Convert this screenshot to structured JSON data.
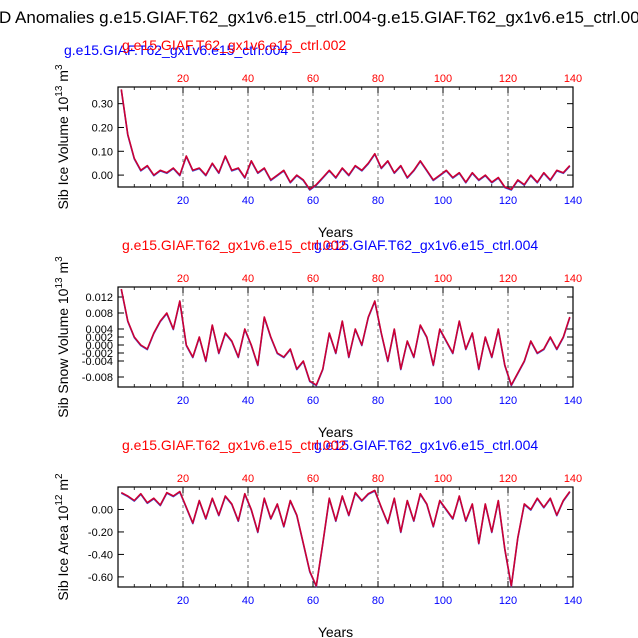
{
  "figure": {
    "title": "D Anomalies g.e15.GIAF.T62_gx1v6.e15_ctrl.004-g.e15.GIAF.T62_gx1v6.e15_ctrl.002"
  },
  "colors": {
    "blue": "#0000ff",
    "red": "#ff0000",
    "line_red": "#cc0033",
    "line_blue": "#3355dd",
    "axis": "#000000",
    "grid": "#555555"
  },
  "chart_data": [
    {
      "type": "line",
      "title_blue": "g.e15.GIAF.T62_gx1v6.e15_ctrl.004",
      "title_red": "g.e15.GIAF.T62_gx1v6.e15_ctrl.002",
      "xlabel": "Years",
      "ylabel": "Sib Ice Volume 10",
      "ylabel_exp": "13",
      "ylabel_unit": " m",
      "ylabel_unit_exp": "3",
      "xlim": [
        0,
        140
      ],
      "ylim": [
        -0.05,
        0.37
      ],
      "xticks": [
        20,
        40,
        60,
        80,
        100,
        120,
        140
      ],
      "xtick_labels": [
        "20",
        "40",
        "60",
        "80",
        "100",
        "120",
        "140"
      ],
      "yticks": [
        0.0,
        0.1,
        0.2,
        0.3
      ],
      "ytick_labels": [
        "0.00",
        "0.10",
        "0.20",
        "0.30"
      ],
      "gridlines_x": [
        20,
        40,
        60,
        80,
        100,
        120
      ],
      "series": [
        {
          "name": "ctrl.004-ctrl.002",
          "x": [
            1,
            3,
            5,
            7,
            9,
            11,
            13,
            15,
            17,
            19,
            21,
            23,
            25,
            27,
            29,
            31,
            33,
            35,
            37,
            39,
            41,
            43,
            45,
            47,
            49,
            51,
            53,
            55,
            57,
            59,
            61,
            63,
            65,
            67,
            69,
            71,
            73,
            75,
            77,
            79,
            81,
            83,
            85,
            87,
            89,
            91,
            93,
            95,
            97,
            99,
            101,
            103,
            105,
            107,
            109,
            111,
            113,
            115,
            117,
            119,
            121,
            123,
            125,
            127,
            129,
            131,
            133,
            135,
            137,
            139
          ],
          "values": [
            0.36,
            0.17,
            0.07,
            0.02,
            0.04,
            0.0,
            0.02,
            0.01,
            0.03,
            0.0,
            0.08,
            0.02,
            0.03,
            0.0,
            0.05,
            0.01,
            0.08,
            0.02,
            0.03,
            -0.01,
            0.06,
            0.01,
            0.03,
            -0.02,
            0.0,
            0.02,
            -0.03,
            0.0,
            -0.02,
            -0.06,
            -0.04,
            -0.01,
            0.02,
            -0.01,
            0.03,
            0.0,
            0.04,
            0.02,
            0.05,
            0.09,
            0.03,
            0.06,
            0.01,
            0.04,
            -0.01,
            0.02,
            0.06,
            0.02,
            -0.02,
            0.0,
            0.02,
            -0.01,
            0.01,
            -0.03,
            0.01,
            -0.02,
            0.0,
            -0.03,
            -0.01,
            -0.05,
            -0.06,
            -0.02,
            -0.04,
            0.0,
            -0.03,
            0.01,
            -0.02,
            0.02,
            0.01,
            0.04
          ]
        }
      ]
    },
    {
      "type": "line",
      "title_blue": "g.e15.GIAF.T62_gx1v6.e15_ctrl.004",
      "title_red": "g.e15.GIAF.T62_gx1v6.e15_ctrl.002",
      "xlabel": "Years",
      "ylabel": "Sib Snow Volume 10",
      "ylabel_exp": "13",
      "ylabel_unit": " m",
      "ylabel_unit_exp": "3",
      "xlim": [
        0,
        140
      ],
      "ylim": [
        -0.0105,
        0.0145
      ],
      "xticks": [
        20,
        40,
        60,
        80,
        100,
        120,
        140
      ],
      "xtick_labels": [
        "20",
        "40",
        "60",
        "80",
        "100",
        "120",
        "140"
      ],
      "yticks": [
        -0.008,
        -0.004,
        -0.002,
        0.0,
        0.002,
        0.004,
        0.008,
        0.012
      ],
      "ytick_labels": [
        "-0.008",
        "-0.004",
        "-0.002",
        "0.000",
        "0.002",
        "0.004",
        "0.008",
        "0.012"
      ],
      "gridlines_x": [
        20,
        40,
        60,
        80,
        100,
        120
      ],
      "series": [
        {
          "name": "ctrl.004-ctrl.002",
          "x": [
            1,
            3,
            5,
            7,
            9,
            11,
            13,
            15,
            17,
            19,
            21,
            23,
            25,
            27,
            29,
            31,
            33,
            35,
            37,
            39,
            41,
            43,
            45,
            47,
            49,
            51,
            53,
            55,
            57,
            59,
            61,
            63,
            65,
            67,
            69,
            71,
            73,
            75,
            77,
            79,
            81,
            83,
            85,
            87,
            89,
            91,
            93,
            95,
            97,
            99,
            101,
            103,
            105,
            107,
            109,
            111,
            113,
            115,
            117,
            119,
            121,
            123,
            125,
            127,
            129,
            131,
            133,
            135,
            137,
            139
          ],
          "values": [
            0.014,
            0.006,
            0.002,
            0.0,
            -0.001,
            0.003,
            0.006,
            0.008,
            0.004,
            0.011,
            0.0,
            -0.003,
            0.002,
            -0.004,
            0.005,
            -0.002,
            0.003,
            0.001,
            -0.003,
            0.004,
            0.0,
            -0.005,
            0.007,
            0.002,
            -0.002,
            -0.003,
            -0.001,
            -0.006,
            -0.004,
            -0.009,
            -0.01,
            -0.006,
            0.003,
            -0.002,
            0.006,
            -0.003,
            0.004,
            0.0,
            0.007,
            0.011,
            0.003,
            -0.004,
            0.004,
            -0.006,
            0.001,
            -0.003,
            0.005,
            0.002,
            -0.005,
            0.004,
            0.001,
            -0.002,
            0.006,
            -0.001,
            0.003,
            -0.006,
            0.002,
            -0.003,
            0.004,
            -0.005,
            -0.01,
            -0.007,
            -0.004,
            0.001,
            -0.002,
            -0.001,
            0.002,
            -0.001,
            0.002,
            0.007
          ]
        }
      ]
    },
    {
      "type": "line",
      "title_blue": "g.e15.GIAF.T62_gx1v6.e15_ctrl.004",
      "title_red": "g.e15.GIAF.T62_gx1v6.e15_ctrl.002",
      "xlabel": "Years",
      "ylabel": "Sib Ice Area 10",
      "ylabel_exp": "12",
      "ylabel_unit": " m",
      "ylabel_unit_exp": "2",
      "xlim": [
        0,
        140
      ],
      "ylim": [
        -0.69,
        0.2
      ],
      "xticks": [
        20,
        40,
        60,
        80,
        100,
        120,
        140
      ],
      "xtick_labels": [
        "20",
        "40",
        "60",
        "80",
        "100",
        "120",
        "140"
      ],
      "yticks": [
        0.0,
        -0.2,
        -0.4,
        -0.6
      ],
      "ytick_labels": [
        "0.00",
        "-0.20",
        "-0.40",
        "-0.60"
      ],
      "gridlines_x": [
        20,
        40,
        60,
        80,
        100,
        120
      ],
      "series": [
        {
          "name": "ctrl.004-ctrl.002",
          "x": [
            1,
            3,
            5,
            7,
            9,
            11,
            13,
            15,
            17,
            19,
            21,
            23,
            25,
            27,
            29,
            31,
            33,
            35,
            37,
            39,
            41,
            43,
            45,
            47,
            49,
            51,
            53,
            55,
            57,
            59,
            61,
            63,
            65,
            67,
            69,
            71,
            73,
            75,
            77,
            79,
            81,
            83,
            85,
            87,
            89,
            91,
            93,
            95,
            97,
            99,
            101,
            103,
            105,
            107,
            109,
            111,
            113,
            115,
            117,
            119,
            121,
            123,
            125,
            127,
            129,
            131,
            133,
            135,
            137,
            139
          ],
          "values": [
            0.15,
            0.12,
            0.08,
            0.14,
            0.06,
            0.1,
            0.04,
            0.15,
            0.12,
            0.16,
            0.02,
            -0.12,
            0.08,
            -0.08,
            0.1,
            -0.05,
            0.12,
            0.05,
            -0.1,
            0.14,
            0.0,
            -0.2,
            0.1,
            -0.08,
            0.05,
            -0.15,
            0.08,
            -0.05,
            -0.3,
            -0.55,
            -0.68,
            -0.3,
            0.1,
            -0.1,
            0.12,
            -0.05,
            0.15,
            0.08,
            0.14,
            0.17,
            0.02,
            -0.12,
            0.1,
            -0.2,
            0.08,
            -0.1,
            0.14,
            0.05,
            -0.15,
            0.08,
            0.0,
            -0.08,
            0.12,
            -0.1,
            0.05,
            -0.3,
            0.05,
            -0.2,
            0.08,
            -0.35,
            -0.68,
            -0.25,
            0.05,
            0.0,
            0.1,
            0.02,
            0.1,
            -0.05,
            0.08,
            0.16
          ]
        }
      ]
    }
  ]
}
